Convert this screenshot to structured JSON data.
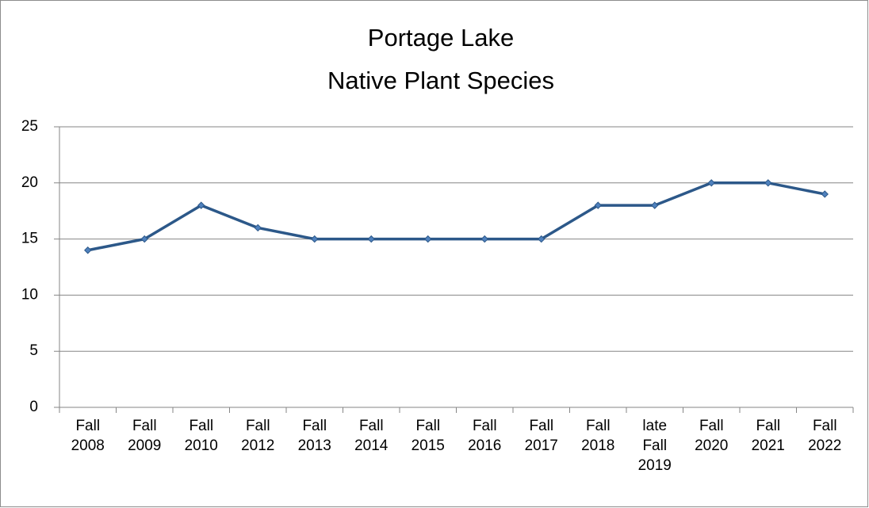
{
  "chart_data": {
    "type": "line",
    "title": [
      "Portage Lake",
      "Native Plant Species"
    ],
    "categories": [
      "Fall 2008",
      "Fall 2009",
      "Fall 2010",
      "Fall 2012",
      "Fall 2013",
      "Fall 2014",
      "Fall 2015",
      "Fall 2016",
      "Fall 2017",
      "Fall 2018",
      "late Fall 2019",
      "Fall 2020",
      "Fall 2021",
      "Fall 2022"
    ],
    "series": [
      {
        "name": "Native Plant Species",
        "color": "#2c5889",
        "marker_color": "#4f81bd",
        "values": [
          14,
          15,
          18,
          16,
          15,
          15,
          15,
          15,
          15,
          18,
          18,
          20,
          20,
          19
        ]
      }
    ],
    "ylim": [
      0,
      25
    ],
    "yticks": [
      0,
      5,
      10,
      15,
      20,
      25
    ],
    "grid": true
  }
}
